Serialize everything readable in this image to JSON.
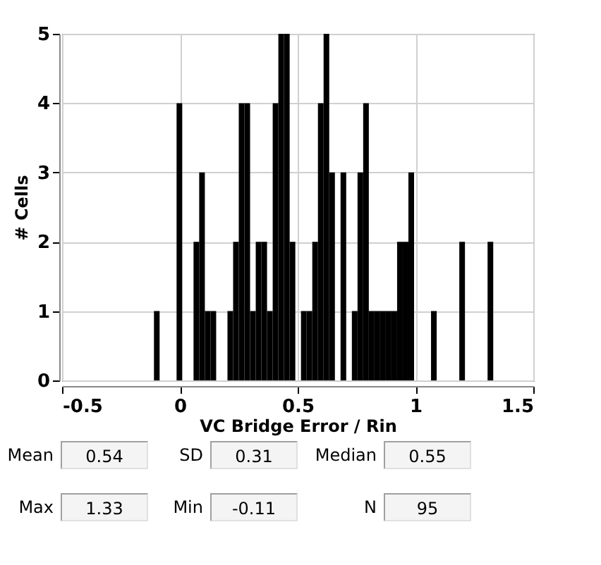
{
  "chart_data": {
    "type": "histogram",
    "xlabel": "VC Bridge Error / Rin",
    "ylabel": "# Cells",
    "bins": [
      -0.11,
      -0.086,
      -0.014,
      0.01,
      0.058,
      0.082,
      0.106,
      0.13,
      0.154,
      0.202,
      0.226,
      0.25,
      0.274,
      0.298,
      0.322,
      0.346,
      0.37,
      0.394,
      0.418,
      0.442,
      0.466,
      0.49,
      0.514,
      0.538,
      0.562,
      0.586,
      0.61,
      0.634,
      0.658,
      0.682,
      0.706,
      0.73,
      0.754,
      0.778,
      0.802,
      0.826,
      0.85,
      0.874,
      0.898,
      0.922,
      0.946,
      0.97,
      0.994,
      1.066,
      1.09,
      1.186,
      1.21,
      1.306,
      1.33
    ],
    "values": [
      1,
      0,
      4,
      0,
      2,
      3,
      1,
      1,
      0,
      1,
      2,
      4,
      4,
      1,
      2,
      2,
      1,
      4,
      5,
      5,
      2,
      0,
      1,
      1,
      2,
      4,
      5,
      3,
      0,
      3,
      0,
      1,
      3,
      4,
      1,
      1,
      1,
      1,
      1,
      2,
      2,
      3,
      0,
      1,
      0,
      2,
      0,
      2
    ],
    "color": "#000000",
    "xlim": [
      -0.5,
      1.5
    ],
    "xticks": [
      -0.5,
      0,
      0.5,
      1,
      1.5
    ],
    "ylim": [
      0,
      5
    ],
    "yticks": [
      0,
      1,
      2,
      3,
      4,
      5
    ],
    "grid": true,
    "annotations": [
      "Mean",
      "0.54",
      "SD",
      "0.31",
      "Median",
      "0.55",
      "Max",
      "1.33",
      "Min",
      "-0.11",
      "N",
      "95"
    ]
  }
}
